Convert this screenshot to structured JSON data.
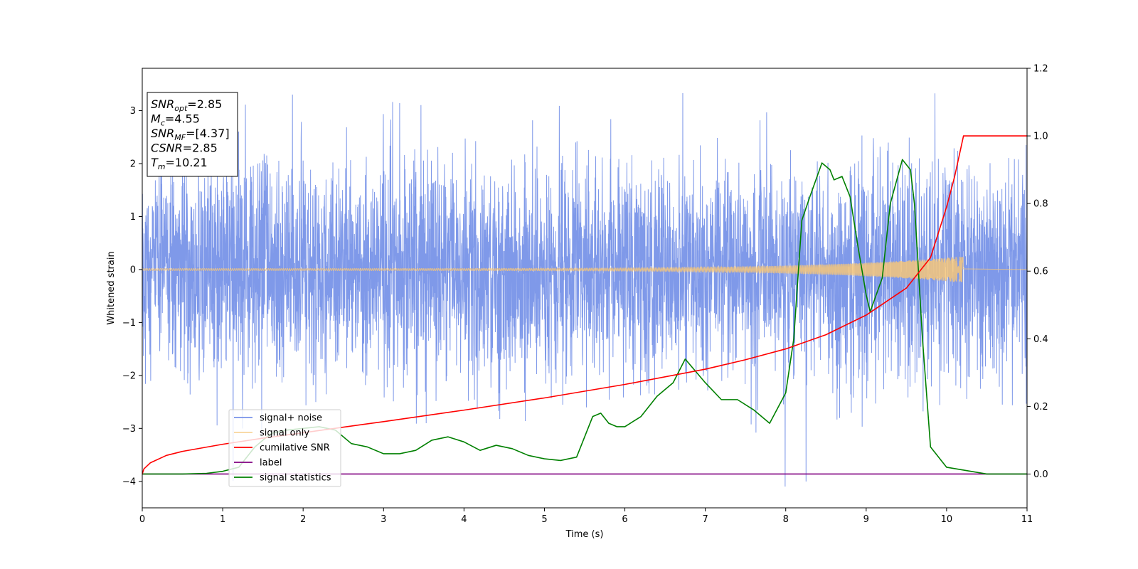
{
  "chart_data": {
    "type": "line",
    "xlabel": "Time (s)",
    "ylabel": "Whitened strain",
    "xlim": [
      0,
      11
    ],
    "ylim_left": [
      -4.5,
      3.8
    ],
    "ylim_right": [
      -0.1,
      1.2
    ],
    "x_ticks": [
      "0",
      "1",
      "2",
      "3",
      "4",
      "5",
      "6",
      "7",
      "8",
      "9",
      "10",
      "11"
    ],
    "y_left_ticks": [
      "−4",
      "−3",
      "−2",
      "−1",
      "0",
      "1",
      "2",
      "3"
    ],
    "y_right_ticks": [
      "0.0",
      "0.2",
      "0.4",
      "0.6",
      "0.8",
      "1.0",
      "1.2"
    ],
    "grid": false,
    "legend_position": "lower-left",
    "annotation": {
      "lines": [
        {
          "var": "SNR",
          "sub": "opt",
          "value": "=2.85"
        },
        {
          "var": "M",
          "sub": "c",
          "value": "=4.55"
        },
        {
          "var": "SNR",
          "sub": "MF",
          "value": "=[4.37]"
        },
        {
          "var": "CSNR",
          "sub": "",
          "value": "=2.85"
        },
        {
          "var": "T",
          "sub": "m",
          "value": "=10.21"
        }
      ]
    },
    "series": [
      {
        "name": "signal+ noise",
        "color": "#7893e8",
        "axis": "left",
        "kind": "noise",
        "x_range": [
          0,
          11
        ],
        "std": 1.0,
        "approx_max": 3.45,
        "approx_min": -4.15
      },
      {
        "name": "signal only",
        "color": "#f5c57a",
        "axis": "left",
        "kind": "chirp",
        "x_range": [
          0,
          10.21
        ],
        "envelope_start": 0.02,
        "envelope_end": 0.25
      },
      {
        "name": "cumilative SNR",
        "color": "#ff0000",
        "axis": "right",
        "x": [
          0,
          0.02,
          0.1,
          0.3,
          0.5,
          1,
          1.5,
          2,
          3,
          4,
          5,
          6,
          7,
          7.5,
          8,
          8.5,
          9,
          9.5,
          9.8,
          10,
          10.1,
          10.21,
          11
        ],
        "y": [
          0.0,
          0.015,
          0.033,
          0.055,
          0.067,
          0.088,
          0.106,
          0.122,
          0.155,
          0.189,
          0.225,
          0.265,
          0.31,
          0.338,
          0.37,
          0.412,
          0.47,
          0.55,
          0.64,
          0.79,
          0.88,
          1.0,
          1.0
        ]
      },
      {
        "name": "label",
        "color": "#800080",
        "axis": "right",
        "x": [
          0,
          11
        ],
        "y": [
          0,
          0
        ]
      },
      {
        "name": "signal statistics",
        "color": "#008000",
        "axis": "right",
        "x": [
          0,
          0.5,
          0.8,
          1.0,
          1.2,
          1.4,
          1.6,
          1.8,
          2.0,
          2.2,
          2.4,
          2.6,
          2.8,
          3.0,
          3.2,
          3.4,
          3.6,
          3.8,
          4.0,
          4.2,
          4.4,
          4.6,
          4.8,
          5.0,
          5.2,
          5.4,
          5.6,
          5.7,
          5.8,
          5.9,
          6.0,
          6.2,
          6.4,
          6.6,
          6.75,
          7.0,
          7.2,
          7.4,
          7.6,
          7.8,
          8.0,
          8.1,
          8.2,
          8.3,
          8.45,
          8.55,
          8.6,
          8.7,
          8.8,
          8.9,
          9.0,
          9.05,
          9.2,
          9.3,
          9.45,
          9.55,
          9.6,
          9.7,
          9.8,
          10.0,
          10.5,
          11.0
        ],
        "y": [
          0.0,
          0.0,
          0.002,
          0.008,
          0.02,
          0.08,
          0.12,
          0.13,
          0.135,
          0.14,
          0.13,
          0.09,
          0.08,
          0.06,
          0.06,
          0.07,
          0.1,
          0.11,
          0.095,
          0.07,
          0.085,
          0.075,
          0.055,
          0.045,
          0.04,
          0.05,
          0.17,
          0.18,
          0.15,
          0.14,
          0.14,
          0.17,
          0.23,
          0.27,
          0.34,
          0.27,
          0.22,
          0.22,
          0.19,
          0.15,
          0.24,
          0.4,
          0.75,
          0.82,
          0.92,
          0.9,
          0.87,
          0.88,
          0.82,
          0.67,
          0.53,
          0.48,
          0.58,
          0.8,
          0.93,
          0.9,
          0.8,
          0.4,
          0.08,
          0.02,
          0.0,
          0.0
        ]
      }
    ]
  }
}
